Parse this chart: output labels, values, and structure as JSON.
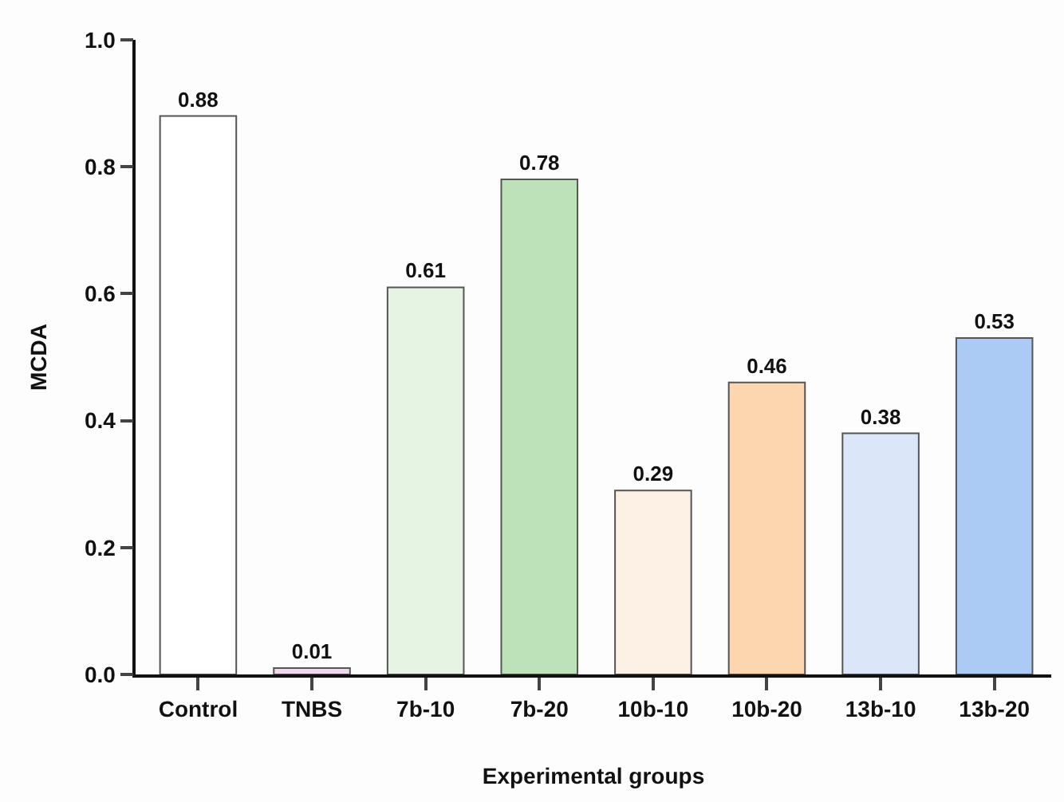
{
  "chart_data": {
    "type": "bar",
    "xlabel": "Experimental groups",
    "ylabel": "MCDA",
    "categories": [
      "Control",
      "TNBS",
      "7b-10",
      "7b-20",
      "10b-10",
      "10b-20",
      "13b-10",
      "13b-20"
    ],
    "values": [
      0.88,
      0.01,
      0.61,
      0.78,
      0.29,
      0.46,
      0.38,
      0.53
    ],
    "colors": [
      "#ffffff",
      "#f0d8f0",
      "#e6f4e4",
      "#bde2b9",
      "#fdf1e6",
      "#fdd5ae",
      "#dbe7f8",
      "#abcbf5"
    ],
    "ylim": [
      0,
      1.0
    ],
    "yticks": [
      {
        "value": 0,
        "label": "0.0"
      },
      0.2,
      0.4,
      0.6,
      0.8,
      {
        "value": 1,
        "label": "1.0"
      }
    ],
    "data_labels": true,
    "grid": false
  }
}
